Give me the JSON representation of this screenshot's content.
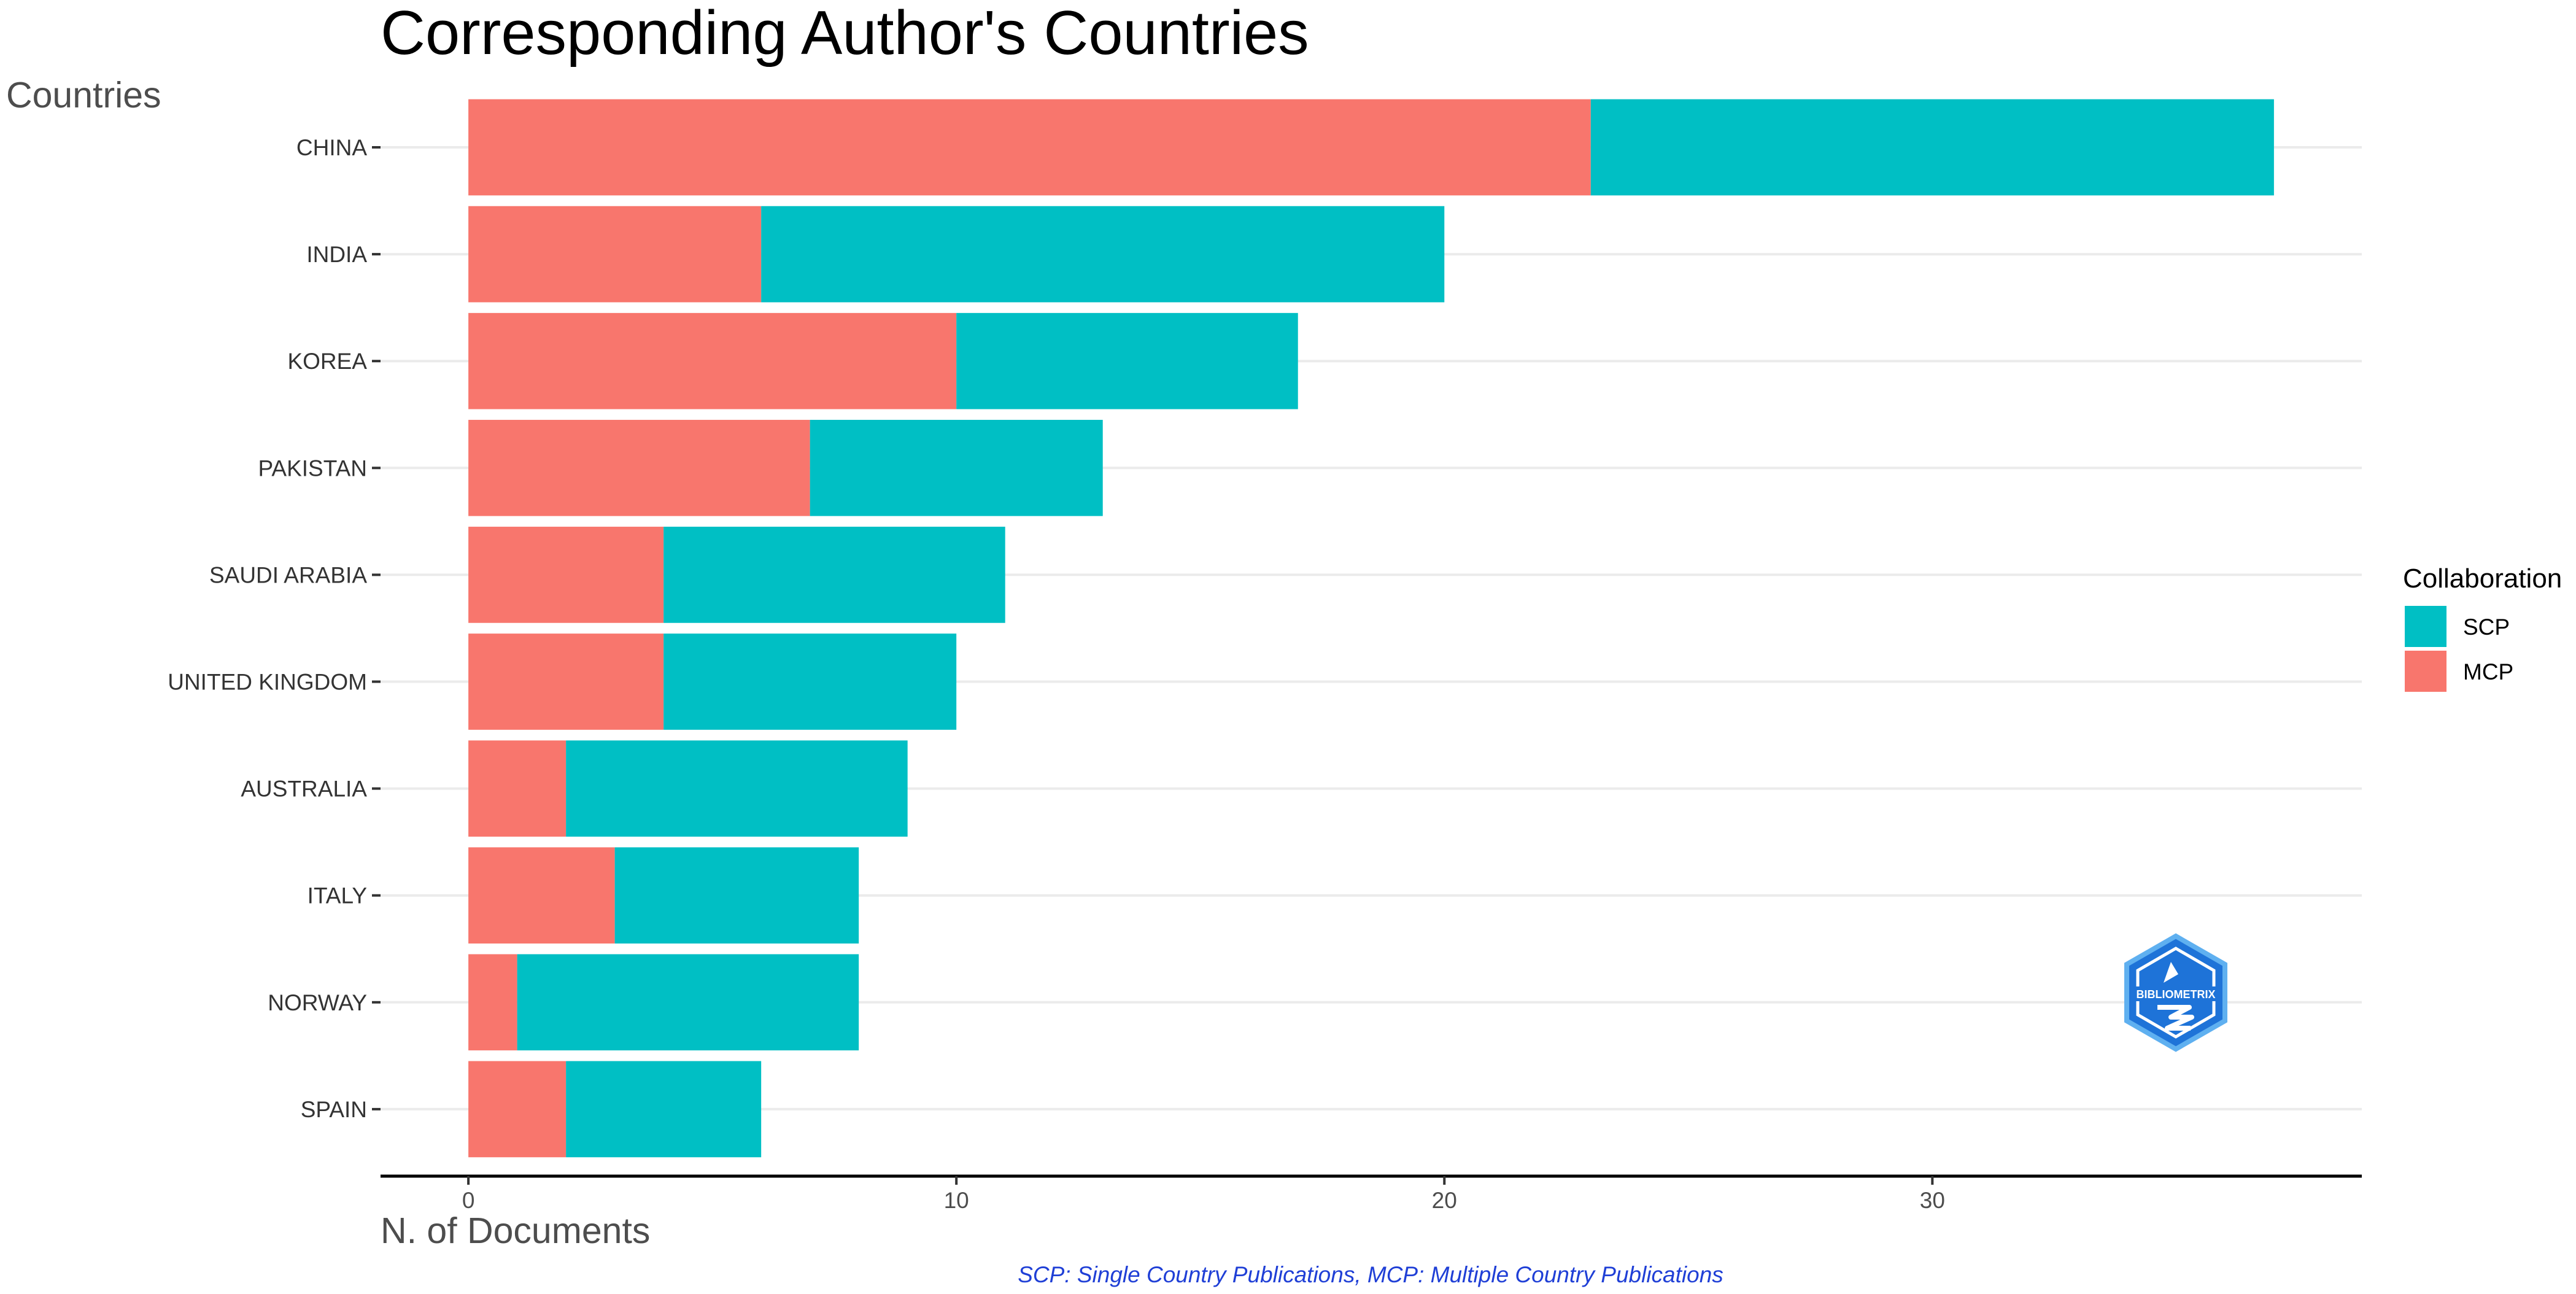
{
  "chart_data": {
    "type": "bar",
    "orientation": "horizontal",
    "stacked": true,
    "title": "Corresponding Author's Countries",
    "ylabel": "Countries",
    "xlabel": "N. of Documents",
    "categories": [
      "CHINA",
      "INDIA",
      "KOREA",
      "PAKISTAN",
      "SAUDI ARABIA",
      "UNITED KINGDOM",
      "AUSTRALIA",
      "ITALY",
      "NORWAY",
      "SPAIN"
    ],
    "series": [
      {
        "name": "MCP",
        "color": "#f8766d",
        "values": [
          23,
          6,
          10,
          7,
          4,
          4,
          2,
          3,
          1,
          2
        ]
      },
      {
        "name": "SCP",
        "color": "#00bfc4",
        "values": [
          14,
          14,
          7,
          6,
          7,
          6,
          7,
          5,
          7,
          4
        ]
      }
    ],
    "xlim": [
      -1.8,
      38.8
    ],
    "xticks": [
      0,
      10,
      20,
      30
    ],
    "grid": true,
    "legend": {
      "title": "Collaboration",
      "position": "right",
      "entries": [
        {
          "label": "SCP",
          "color": "#00bfc4"
        },
        {
          "label": "MCP",
          "color": "#f8766d"
        }
      ]
    },
    "caption": "SCP: Single Country Publications, MCP: Multiple Country Publications"
  },
  "logo": {
    "text": "BIBLIOMETRIX",
    "icon": "bibliometrix-logo-icon"
  }
}
